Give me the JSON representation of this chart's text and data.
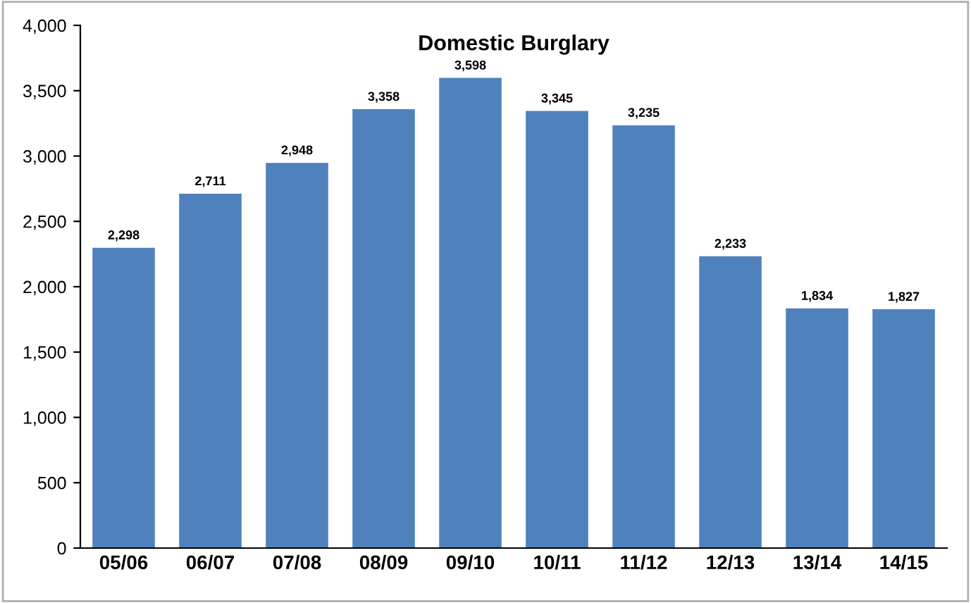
{
  "chart_data": {
    "type": "bar",
    "title": "Domestic Burglary",
    "categories": [
      "05/06",
      "06/07",
      "07/08",
      "08/09",
      "09/10",
      "10/11",
      "11/12",
      "12/13",
      "13/14",
      "14/15"
    ],
    "values": [
      2298,
      2711,
      2948,
      3358,
      3598,
      3345,
      3235,
      2233,
      1834,
      1827
    ],
    "value_labels": [
      "2,298",
      "2,711",
      "2,948",
      "3,358",
      "3,598",
      "3,345",
      "3,235",
      "2,233",
      "1,834",
      "1,827"
    ],
    "color": "#4f81bd",
    "ylim": [
      0,
      4000
    ],
    "yticks": [
      0,
      {
        "value": 500,
        "label": "500"
      },
      {
        "value": 1000,
        "label": "1,000"
      },
      {
        "value": 1500,
        "label": "1,500"
      },
      {
        "value": 2000,
        "label": "2,000"
      },
      {
        "value": 2500,
        "label": "2,500"
      },
      {
        "value": 3000,
        "label": "3,000"
      },
      {
        "value": 3500,
        "label": "3,500"
      },
      {
        "value": 4000,
        "label": "4,000"
      }
    ],
    "grid": false,
    "legend": false
  }
}
